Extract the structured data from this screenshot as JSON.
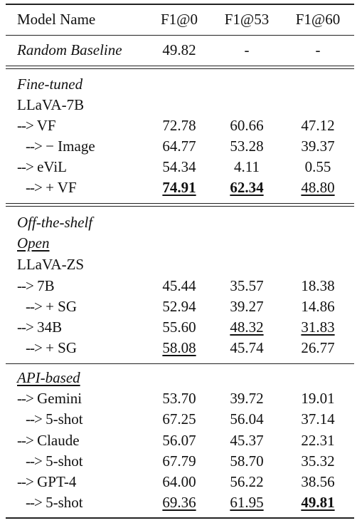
{
  "header": {
    "model": "Model Name",
    "c1": "F1@0",
    "c2": "F1@53",
    "c3": "F1@60"
  },
  "baseline": {
    "name": "Random Baseline",
    "c1": "49.82",
    "c2": "-",
    "c3": "-"
  },
  "sections": {
    "finetuned": "Fine-tuned",
    "offshelf": "Off-the-shelf",
    "open": "Open",
    "api": "API-based"
  },
  "groups": {
    "llava7b": "LLaVA-7B",
    "llavazs": "LLaVA-ZS"
  },
  "arrow": "-->",
  "rows": {
    "vf": {
      "name": "VF",
      "c1": "72.78",
      "c2": "60.66",
      "c3": "47.12"
    },
    "vf_img": {
      "name": "− Image",
      "c1": "64.77",
      "c2": "53.28",
      "c3": "39.37"
    },
    "evil": {
      "name": "eViL",
      "c1": "54.34",
      "c2": "4.11",
      "c3": "0.55"
    },
    "evil_vf": {
      "name": "+ VF",
      "c1": "74.91",
      "c2": "62.34",
      "c3": "48.80"
    },
    "zs7b": {
      "name": "7B",
      "c1": "45.44",
      "c2": "35.57",
      "c3": "18.38"
    },
    "zs7b_sg": {
      "name": "+ SG",
      "c1": "52.94",
      "c2": "39.27",
      "c3": "14.86"
    },
    "zs34b": {
      "name": "34B",
      "c1": "55.60",
      "c2": "48.32",
      "c3": "31.83"
    },
    "zs34b_sg": {
      "name": "+ SG",
      "c1": "58.08",
      "c2": "45.74",
      "c3": "26.77"
    },
    "gemini": {
      "name": "Gemini",
      "c1": "53.70",
      "c2": "39.72",
      "c3": "19.01"
    },
    "gemini_5": {
      "name": "5-shot",
      "c1": "67.25",
      "c2": "56.04",
      "c3": "37.14"
    },
    "claude": {
      "name": "Claude",
      "c1": "56.07",
      "c2": "45.37",
      "c3": "22.31"
    },
    "claude_5": {
      "name": "5-shot",
      "c1": "67.79",
      "c2": "58.70",
      "c3": "35.32"
    },
    "gpt4": {
      "name": "GPT-4",
      "c1": "64.00",
      "c2": "56.22",
      "c3": "38.56"
    },
    "gpt4_5": {
      "name": "5-shot",
      "c1": "69.36",
      "c2": "61.95",
      "c3": "49.81"
    }
  }
}
